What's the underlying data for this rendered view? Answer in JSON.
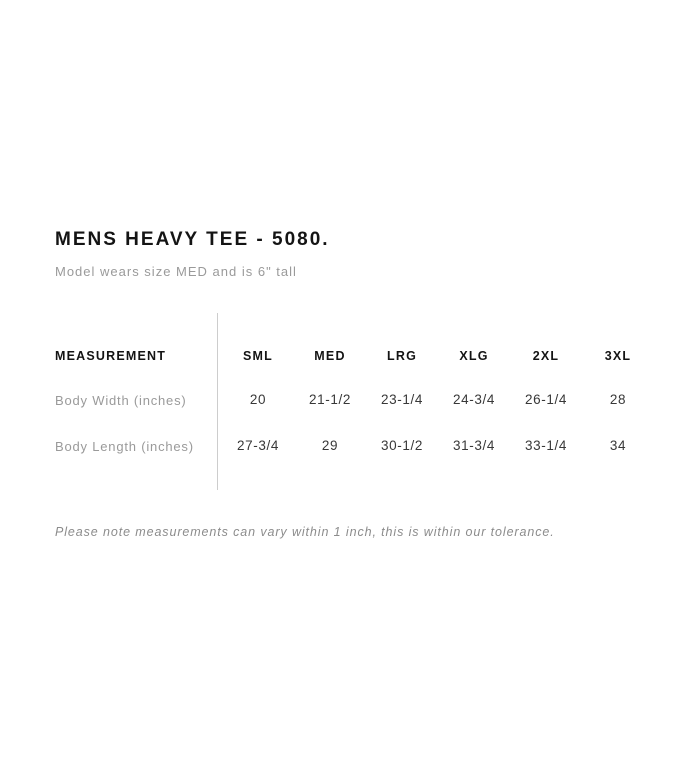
{
  "page": {
    "title": "MENS HEAVY TEE - 5080.",
    "subtitle": "Model wears size MED and is 6\" tall",
    "footnote": "Please note measurements can vary within 1 inch, this is within our tolerance."
  },
  "size_chart": {
    "measurement_header": "MEASUREMENT",
    "size_headers": [
      "SML",
      "MED",
      "LRG",
      "XLG",
      "2XL",
      "3XL"
    ],
    "rows": [
      {
        "label": "Body Width (inches)",
        "values": [
          "20",
          "21-1/2",
          "23-1/4",
          "24-3/4",
          "26-1/4",
          "28"
        ]
      },
      {
        "label": "Body Length (inches)",
        "values": [
          "27-3/4",
          "29",
          "30-1/2",
          "31-3/4",
          "33-1/4",
          "34"
        ]
      }
    ]
  },
  "colors": {
    "background": "#ffffff",
    "heading_text": "#141414",
    "muted_text": "#9a9a9a",
    "value_text": "#383838",
    "footnote_text": "#8c8c8c",
    "divider": "#cdcdcd"
  }
}
